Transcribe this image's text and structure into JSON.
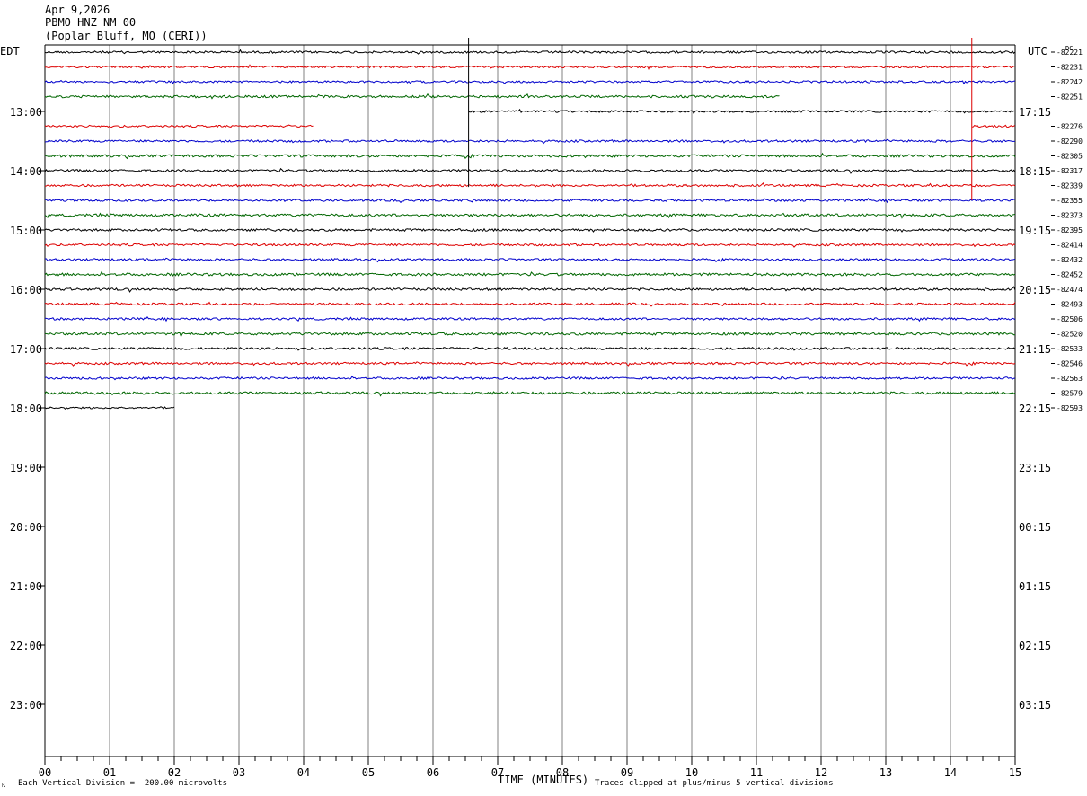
{
  "header": {
    "date": "Apr 9,2026",
    "station": "PBMO HNZ NM 00",
    "location": "(Poplar Bluff, MO (CERI))"
  },
  "axis_labels": {
    "left_tz": "EDT",
    "right_tz": "UTC",
    "dc": "DC",
    "x_title": "TIME (MINUTES)"
  },
  "footer": {
    "mark": "☈",
    "scale_note": "Each Vertical Division =  200.00 microvolts",
    "clip_note": "Traces clipped at plus/minus 5 vertical divisions"
  },
  "colors": {
    "trace_cycle": [
      "#000000",
      "#dd0000",
      "#0000cc",
      "#006600"
    ],
    "grid": "#808080",
    "frame": "#000000"
  },
  "chart_data": {
    "type": "line",
    "title": "",
    "xlabel": "TIME (MINUTES)",
    "ylabel": "",
    "xlim": [
      0,
      15
    ],
    "x_ticks": [
      "00",
      "01",
      "02",
      "03",
      "04",
      "05",
      "06",
      "07",
      "08",
      "09",
      "10",
      "11",
      "12",
      "13",
      "14",
      "15"
    ],
    "row_minutes": 15,
    "rows_total": 48,
    "left_hour_labels": [
      {
        "row": 4,
        "label": "13:00"
      },
      {
        "row": 8,
        "label": "14:00"
      },
      {
        "row": 12,
        "label": "15:00"
      },
      {
        "row": 16,
        "label": "16:00"
      },
      {
        "row": 20,
        "label": "17:00"
      },
      {
        "row": 24,
        "label": "18:00"
      },
      {
        "row": 28,
        "label": "19:00"
      },
      {
        "row": 32,
        "label": "20:00"
      },
      {
        "row": 36,
        "label": "21:00"
      },
      {
        "row": 40,
        "label": "22:00"
      },
      {
        "row": 44,
        "label": "23:00"
      }
    ],
    "right_hour_labels": [
      {
        "row": 4,
        "label": "17:15"
      },
      {
        "row": 8,
        "label": "18:15"
      },
      {
        "row": 12,
        "label": "19:15"
      },
      {
        "row": 16,
        "label": "20:15"
      },
      {
        "row": 20,
        "label": "21:15"
      },
      {
        "row": 24,
        "label": "22:15"
      },
      {
        "row": 28,
        "label": "23:15"
      },
      {
        "row": 32,
        "label": "00:15"
      },
      {
        "row": 36,
        "label": "01:15"
      },
      {
        "row": 40,
        "label": "02:15"
      },
      {
        "row": 44,
        "label": "03:15"
      }
    ],
    "traces": [
      {
        "row": 0,
        "start_min": 0,
        "end_min": 15,
        "dc": "-82221",
        "noise": 1.2
      },
      {
        "row": 1,
        "start_min": 0,
        "end_min": 15,
        "dc": "-82231",
        "noise": 1.1
      },
      {
        "row": 2,
        "start_min": 0,
        "end_min": 15,
        "dc": "-82242",
        "noise": 1.1
      },
      {
        "row": 3,
        "start_min": 0,
        "end_min": 11.37,
        "dc": "-82251",
        "noise": 1.3
      },
      {
        "row": 4,
        "start_min": 6.55,
        "end_min": 15,
        "dc": "",
        "noise": 1.1
      },
      {
        "row": 5,
        "start_min": 0,
        "end_min": 4.15,
        "dc": "-82276",
        "noise": 1.1
      },
      {
        "row": 5,
        "start_min": 14.33,
        "end_min": 15,
        "dc": "",
        "noise": 1.1
      },
      {
        "row": 6,
        "start_min": 0,
        "end_min": 15,
        "dc": "-82290",
        "noise": 1.2
      },
      {
        "row": 7,
        "start_min": 0,
        "end_min": 15,
        "dc": "-82305",
        "noise": 1.4
      },
      {
        "row": 8,
        "start_min": 0,
        "end_min": 15,
        "dc": "-82317",
        "noise": 1.3
      },
      {
        "row": 9,
        "start_min": 0,
        "end_min": 15,
        "dc": "-82339",
        "noise": 1.2
      },
      {
        "row": 10,
        "start_min": 0,
        "end_min": 15,
        "dc": "-82355",
        "noise": 1.2
      },
      {
        "row": 11,
        "start_min": 0,
        "end_min": 15,
        "dc": "-82373",
        "noise": 1.4
      },
      {
        "row": 12,
        "start_min": 0,
        "end_min": 15,
        "dc": "-82395",
        "noise": 1.3
      },
      {
        "row": 13,
        "start_min": 0,
        "end_min": 15,
        "dc": "-82414",
        "noise": 1.2
      },
      {
        "row": 14,
        "start_min": 0,
        "end_min": 15,
        "dc": "-82432",
        "noise": 1.2
      },
      {
        "row": 15,
        "start_min": 0,
        "end_min": 15,
        "dc": "-82452",
        "noise": 1.4
      },
      {
        "row": 16,
        "start_min": 0,
        "end_min": 15,
        "dc": "-82474",
        "noise": 1.3
      },
      {
        "row": 17,
        "start_min": 0,
        "end_min": 15,
        "dc": "-82493",
        "noise": 1.2
      },
      {
        "row": 18,
        "start_min": 0,
        "end_min": 15,
        "dc": "-82506",
        "noise": 1.2
      },
      {
        "row": 19,
        "start_min": 0,
        "end_min": 15,
        "dc": "-82520",
        "noise": 1.4
      },
      {
        "row": 20,
        "start_min": 0,
        "end_min": 15,
        "dc": "-82533",
        "noise": 1.3
      },
      {
        "row": 21,
        "start_min": 0,
        "end_min": 15,
        "dc": "-82546",
        "noise": 1.2
      },
      {
        "row": 22,
        "start_min": 0,
        "end_min": 15,
        "dc": "-82563",
        "noise": 1.2
      },
      {
        "row": 23,
        "start_min": 0,
        "end_min": 15,
        "dc": "-82579",
        "noise": 1.4
      },
      {
        "row": 24,
        "start_min": 0,
        "end_min": 2.0,
        "dc": "-82593",
        "noise": 1.0
      }
    ],
    "spikes": [
      {
        "row": 0,
        "minute": 6.55,
        "to_row": 9.1,
        "color_index": 0
      },
      {
        "row": 0,
        "minute": 14.33,
        "to_row": 10.0,
        "color_index": 1
      }
    ]
  }
}
